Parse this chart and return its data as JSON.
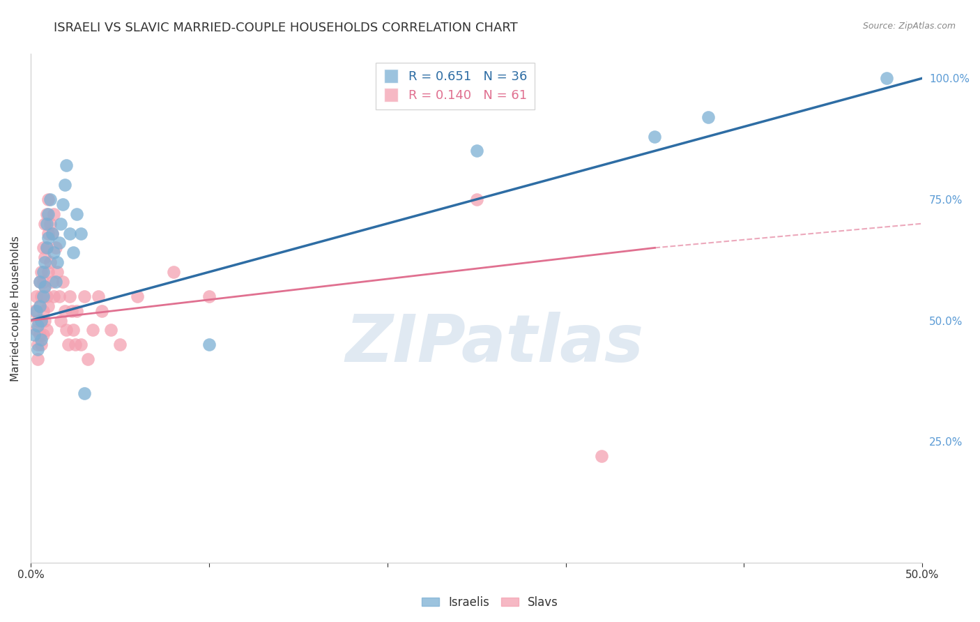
{
  "title": "ISRAELI VS SLAVIC MARRIED-COUPLE HOUSEHOLDS CORRELATION CHART",
  "source": "Source: ZipAtlas.com",
  "ylabel": "Married-couple Households",
  "xmin": 0.0,
  "xmax": 0.5,
  "ymin": 0.0,
  "ymax": 1.05,
  "xticks": [
    0.0,
    0.1,
    0.2,
    0.3,
    0.4,
    0.5
  ],
  "xtick_labels": [
    "0.0%",
    "",
    "",
    "",
    "",
    "50.0%"
  ],
  "yticks": [
    0.0,
    0.25,
    0.5,
    0.75,
    1.0
  ],
  "ytick_labels": [
    "",
    "25.0%",
    "50.0%",
    "75.0%",
    "100.0%"
  ],
  "israeli_color": "#7bafd4",
  "slavic_color": "#f4a0b0",
  "israeli_R": 0.651,
  "israeli_N": 36,
  "slavic_R": 0.14,
  "slavic_N": 61,
  "legend_label_israeli": "Israelis",
  "legend_label_slavic": "Slavs",
  "watermark": "ZIPatlas",
  "israeli_line": [
    0.0,
    0.5,
    0.5,
    1.0
  ],
  "slavic_line_solid": [
    0.0,
    0.5,
    0.35,
    0.65
  ],
  "slavic_line_dash": [
    0.35,
    0.65,
    0.5,
    0.7
  ],
  "israeli_scatter": [
    [
      0.002,
      0.47
    ],
    [
      0.003,
      0.52
    ],
    [
      0.004,
      0.49
    ],
    [
      0.004,
      0.44
    ],
    [
      0.005,
      0.53
    ],
    [
      0.005,
      0.58
    ],
    [
      0.006,
      0.5
    ],
    [
      0.006,
      0.46
    ],
    [
      0.007,
      0.55
    ],
    [
      0.007,
      0.6
    ],
    [
      0.008,
      0.62
    ],
    [
      0.008,
      0.57
    ],
    [
      0.009,
      0.65
    ],
    [
      0.009,
      0.7
    ],
    [
      0.01,
      0.67
    ],
    [
      0.01,
      0.72
    ],
    [
      0.011,
      0.75
    ],
    [
      0.012,
      0.68
    ],
    [
      0.013,
      0.64
    ],
    [
      0.014,
      0.58
    ],
    [
      0.015,
      0.62
    ],
    [
      0.016,
      0.66
    ],
    [
      0.017,
      0.7
    ],
    [
      0.018,
      0.74
    ],
    [
      0.019,
      0.78
    ],
    [
      0.02,
      0.82
    ],
    [
      0.022,
      0.68
    ],
    [
      0.024,
      0.64
    ],
    [
      0.026,
      0.72
    ],
    [
      0.028,
      0.68
    ],
    [
      0.03,
      0.35
    ],
    [
      0.1,
      0.45
    ],
    [
      0.25,
      0.85
    ],
    [
      0.35,
      0.88
    ],
    [
      0.38,
      0.92
    ],
    [
      0.48,
      1.0
    ]
  ],
  "slavic_scatter": [
    [
      0.002,
      0.52
    ],
    [
      0.003,
      0.48
    ],
    [
      0.003,
      0.55
    ],
    [
      0.004,
      0.5
    ],
    [
      0.004,
      0.45
    ],
    [
      0.004,
      0.42
    ],
    [
      0.005,
      0.58
    ],
    [
      0.005,
      0.53
    ],
    [
      0.005,
      0.47
    ],
    [
      0.006,
      0.6
    ],
    [
      0.006,
      0.55
    ],
    [
      0.006,
      0.5
    ],
    [
      0.006,
      0.45
    ],
    [
      0.007,
      0.65
    ],
    [
      0.007,
      0.58
    ],
    [
      0.007,
      0.52
    ],
    [
      0.007,
      0.47
    ],
    [
      0.008,
      0.7
    ],
    [
      0.008,
      0.63
    ],
    [
      0.008,
      0.57
    ],
    [
      0.008,
      0.5
    ],
    [
      0.009,
      0.72
    ],
    [
      0.009,
      0.65
    ],
    [
      0.009,
      0.55
    ],
    [
      0.009,
      0.48
    ],
    [
      0.01,
      0.75
    ],
    [
      0.01,
      0.68
    ],
    [
      0.01,
      0.6
    ],
    [
      0.01,
      0.53
    ],
    [
      0.011,
      0.7
    ],
    [
      0.011,
      0.62
    ],
    [
      0.012,
      0.68
    ],
    [
      0.012,
      0.58
    ],
    [
      0.013,
      0.72
    ],
    [
      0.013,
      0.55
    ],
    [
      0.014,
      0.65
    ],
    [
      0.015,
      0.6
    ],
    [
      0.016,
      0.55
    ],
    [
      0.017,
      0.5
    ],
    [
      0.018,
      0.58
    ],
    [
      0.019,
      0.52
    ],
    [
      0.02,
      0.48
    ],
    [
      0.021,
      0.45
    ],
    [
      0.022,
      0.55
    ],
    [
      0.023,
      0.52
    ],
    [
      0.024,
      0.48
    ],
    [
      0.025,
      0.45
    ],
    [
      0.026,
      0.52
    ],
    [
      0.028,
      0.45
    ],
    [
      0.03,
      0.55
    ],
    [
      0.032,
      0.42
    ],
    [
      0.035,
      0.48
    ],
    [
      0.038,
      0.55
    ],
    [
      0.04,
      0.52
    ],
    [
      0.045,
      0.48
    ],
    [
      0.05,
      0.45
    ],
    [
      0.06,
      0.55
    ],
    [
      0.08,
      0.6
    ],
    [
      0.1,
      0.55
    ],
    [
      0.25,
      0.75
    ],
    [
      0.32,
      0.22
    ]
  ],
  "title_fontsize": 13,
  "axis_label_color": "#333333",
  "tick_color_y": "#5b9bd5",
  "background_color": "#ffffff",
  "grid_color": "#cccccc",
  "line_color_israeli": "#2e6da4",
  "line_color_slavic": "#e07090"
}
